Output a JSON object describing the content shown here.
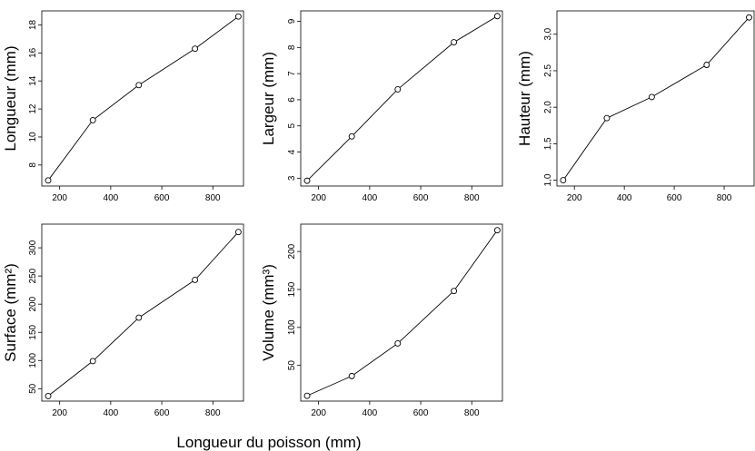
{
  "xlabel": "Longueur du poisson (mm)",
  "chart_data": [
    {
      "type": "line",
      "ylabel": "Longueur (mm)",
      "x": [
        155,
        330,
        510,
        730,
        900
      ],
      "y": [
        6.9,
        11.2,
        13.7,
        16.3,
        18.6
      ],
      "xlim": [
        130,
        920
      ],
      "ylim": [
        6.5,
        19.0
      ],
      "xticks": [
        "200",
        "400",
        "600",
        "800"
      ],
      "yticks": [
        "8",
        "10",
        "12",
        "14",
        "16",
        "18"
      ]
    },
    {
      "type": "line",
      "ylabel": "Largeur (mm)",
      "x": [
        155,
        330,
        510,
        730,
        900
      ],
      "y": [
        2.9,
        4.6,
        6.4,
        8.2,
        9.2
      ],
      "xlim": [
        130,
        920
      ],
      "ylim": [
        2.7,
        9.4
      ],
      "xticks": [
        "200",
        "400",
        "600",
        "800"
      ],
      "yticks": [
        "3",
        "4",
        "5",
        "6",
        "7",
        "8",
        "9"
      ]
    },
    {
      "type": "line",
      "ylabel": "Hauteur (mm)",
      "x": [
        155,
        330,
        510,
        730,
        900
      ],
      "y": [
        1.0,
        1.85,
        2.14,
        2.58,
        3.23
      ],
      "xlim": [
        130,
        920
      ],
      "ylim": [
        0.92,
        3.32
      ],
      "xticks": [
        "200",
        "400",
        "600",
        "800"
      ],
      "yticks": [
        "1,0",
        "1,5",
        "2,0",
        "2,5",
        "3,0"
      ]
    },
    {
      "type": "line",
      "ylabel": "Surface (mm²)",
      "x": [
        155,
        330,
        510,
        730,
        900
      ],
      "y": [
        37,
        99,
        176,
        243,
        328
      ],
      "xlim": [
        130,
        920
      ],
      "ylim": [
        28,
        342
      ],
      "xticks": [
        "200",
        "400",
        "600",
        "800"
      ],
      "yticks": [
        "50",
        "100",
        "150",
        "200",
        "250",
        "300"
      ]
    },
    {
      "type": "line",
      "ylabel": "Volume (mm³)",
      "x": [
        155,
        330,
        510,
        730,
        900
      ],
      "y": [
        10,
        36,
        79,
        148,
        228
      ],
      "xlim": [
        130,
        920
      ],
      "ylim": [
        3,
        236
      ],
      "xticks": [
        "200",
        "400",
        "600",
        "800"
      ],
      "yticks": [
        "50",
        "100",
        "150",
        "200"
      ]
    }
  ]
}
